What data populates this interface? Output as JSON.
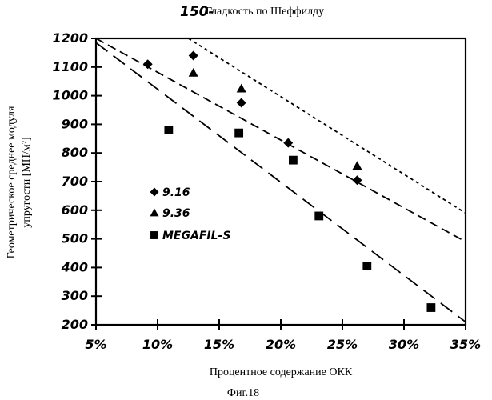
{
  "figure": {
    "heading_number": "150-",
    "heading_text": "Гладкость по Шеффилду",
    "caption": "Фиг.18"
  },
  "chart_data": {
    "type": "scatter",
    "xlabel": "Процентное содержание ОКК",
    "ylabel_line1": "Геометрическое среднее модуля",
    "ylabel_line2": "упругости [МН/м²]",
    "xlim": [
      5,
      35
    ],
    "ylim": [
      200,
      1200
    ],
    "x_ticks": [
      5,
      10,
      15,
      20,
      25,
      30,
      35
    ],
    "x_tick_labels": [
      "5%",
      "10%",
      "15%",
      "20%",
      "25%",
      "30%",
      "35%"
    ],
    "y_ticks": [
      200,
      300,
      400,
      500,
      600,
      700,
      800,
      900,
      1000,
      1100,
      1200
    ],
    "y_tick_labels": [
      "200",
      "300",
      "400",
      "500",
      "600",
      "700",
      "800",
      "900",
      "1000",
      "1100",
      "1200"
    ],
    "grid": false,
    "legend_position": "left-middle",
    "series": [
      {
        "name": "9.16",
        "marker": "diamond",
        "line_style": "medium-dash",
        "points": [
          [
            9.2,
            1110
          ],
          [
            12.9,
            1140
          ],
          [
            16.8,
            975
          ],
          [
            20.6,
            835
          ],
          [
            26.2,
            705
          ]
        ],
        "trend": [
          [
            5,
            1200
          ],
          [
            35,
            490
          ]
        ]
      },
      {
        "name": "9.36",
        "marker": "triangle",
        "line_style": "short-dash",
        "points": [
          [
            12.9,
            1080
          ],
          [
            16.8,
            1025
          ],
          [
            26.2,
            755
          ]
        ],
        "trend": [
          [
            12.5,
            1200
          ],
          [
            35,
            590
          ]
        ]
      },
      {
        "name": "MEGAFIL-S",
        "marker": "square",
        "line_style": "long-dash",
        "points": [
          [
            10.9,
            880
          ],
          [
            16.6,
            870
          ],
          [
            21.0,
            775
          ],
          [
            23.1,
            580
          ],
          [
            27.0,
            405
          ],
          [
            32.2,
            260
          ]
        ],
        "trend": [
          [
            5,
            1185
          ],
          [
            35,
            210
          ]
        ]
      }
    ]
  }
}
